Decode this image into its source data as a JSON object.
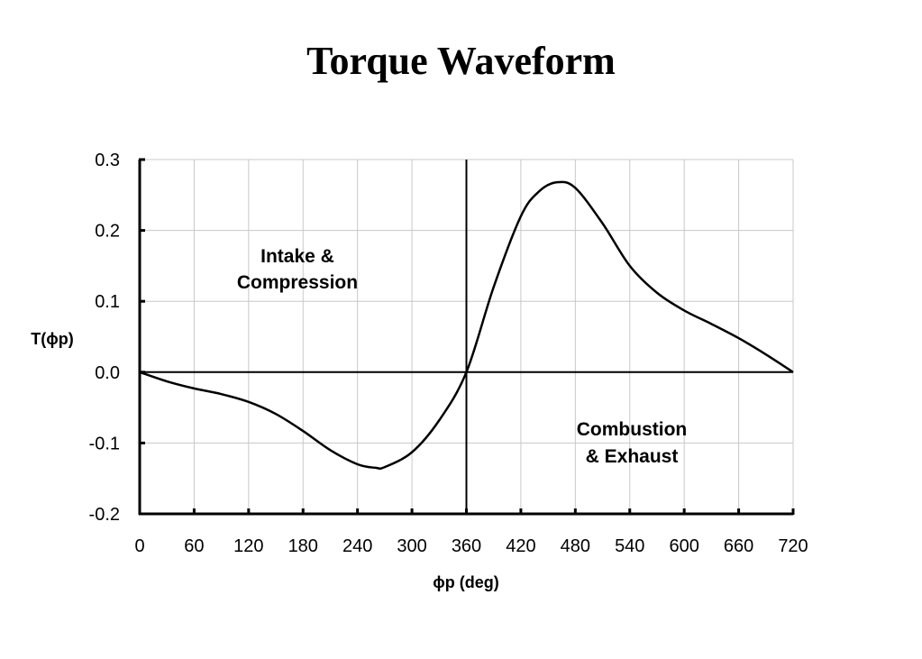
{
  "chart_data": {
    "type": "line",
    "title": "Torque Waveform",
    "xlabel": "ϕp (deg)",
    "ylabel": "T(ϕp)",
    "xlim": [
      0,
      720
    ],
    "ylim": [
      -0.2,
      0.3
    ],
    "xticks": [
      "0",
      "60",
      "120",
      "180",
      "240",
      "300",
      "360",
      "420",
      "480",
      "540",
      "600",
      "660",
      "720"
    ],
    "yticks": [
      "0.3",
      "0.2",
      "0.1",
      "0.0",
      "-0.1",
      "-0.2"
    ],
    "grid": true,
    "legend": "none",
    "annotations": [
      {
        "lines": [
          "Intake &",
          "Compression"
        ]
      },
      {
        "lines": [
          "Combustion",
          "& Exhaust"
        ]
      }
    ],
    "vertical_line_x": 360,
    "series": [
      {
        "color": "#000000",
        "x": [
          0,
          30,
          60,
          90,
          120,
          150,
          180,
          210,
          240,
          260,
          270,
          300,
          330,
          360,
          390,
          420,
          440,
          460,
          480,
          510,
          540,
          570,
          600,
          630,
          660,
          690,
          720
        ],
        "y": [
          0,
          -0.013,
          -0.023,
          -0.031,
          -0.042,
          -0.059,
          -0.083,
          -0.11,
          -0.13,
          -0.135,
          -0.134,
          -0.113,
          -0.068,
          0,
          0.12,
          0.22,
          0.255,
          0.268,
          0.26,
          0.21,
          0.15,
          0.112,
          0.087,
          0.068,
          0.048,
          0.025,
          0
        ]
      }
    ]
  }
}
